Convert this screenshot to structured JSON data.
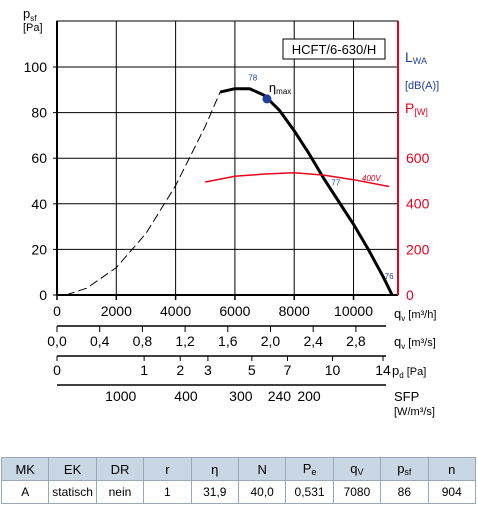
{
  "chart_data": {
    "type": "line",
    "model": "HCFT/6-630/H",
    "left_axis": {
      "label": "p",
      "label_sub": "sf",
      "unit": "[Pa]",
      "range": [
        0,
        100
      ],
      "ticks": [
        "0",
        "20",
        "40",
        "60",
        "80",
        "100"
      ]
    },
    "right_axis": {
      "label": "P",
      "label_sub": "[W]",
      "range": [
        0,
        875
      ],
      "ticks": [
        "0",
        "200",
        "400",
        "600"
      ],
      "sound_label": "L",
      "sound_sub": "WA",
      "sound_unit": "[dB(A)]"
    },
    "x_axis": {
      "label": "q",
      "label_sub": "v",
      "unit": "[m³/h]",
      "range": [
        0,
        11500
      ],
      "ticks": [
        "0",
        "2000",
        "4000",
        "6000",
        "8000",
        "10000"
      ]
    },
    "x_axis_m3s": {
      "label": "q",
      "label_sub": "v",
      "unit": "[m³/s]",
      "ticks": [
        "0,0",
        "0,4",
        "0,8",
        "1,2",
        "1,6",
        "2,0",
        "2,4",
        "2,8"
      ],
      "tick_values": [
        0,
        0.4,
        0.8,
        1.2,
        1.6,
        2.0,
        2.4,
        2.8
      ]
    },
    "x_axis_pd": {
      "label": "p",
      "label_sub": "d",
      "unit": "[Pa]",
      "ticks": [
        "0",
        "1",
        "2",
        "3",
        "5",
        "7",
        "10",
        "14"
      ],
      "tick_values": [
        0,
        1,
        2,
        3,
        5,
        7,
        10,
        14
      ]
    },
    "x_axis_sfp": {
      "label": "SFP",
      "unit": "[W/m³/s]",
      "ticks": [
        "1000",
        "400",
        "300",
        "240",
        "200"
      ],
      "tick_flow_m3h": [
        2150,
        4350,
        6200,
        7500,
        8500
      ]
    },
    "series": [
      {
        "name": "pressure-dashed",
        "axis": "left",
        "style": "dashed",
        "x": [
          300,
          1000,
          2000,
          3000,
          4000,
          5000,
          5500
        ],
        "y": [
          0,
          3,
          12,
          27,
          48,
          74,
          89
        ]
      },
      {
        "name": "pressure",
        "axis": "left",
        "style": "solid",
        "x": [
          5500,
          6000,
          6500,
          7000,
          7500,
          8000,
          8500,
          9000,
          9500,
          10000,
          10500,
          11000,
          11300
        ],
        "y": [
          89,
          90.5,
          90.5,
          87.5,
          81,
          72,
          62,
          51,
          41,
          31,
          20,
          8,
          0
        ]
      },
      {
        "name": "400V",
        "axis": "right",
        "style": "solid",
        "x": [
          5000,
          6000,
          7000,
          8000,
          9000,
          10000,
          11200
        ],
        "y": [
          495,
          520,
          530,
          535,
          525,
          505,
          475
        ]
      }
    ],
    "efficiency_labels": [
      {
        "text": "78",
        "x": 6600,
        "y": 94
      },
      {
        "text": "77",
        "x": 9400,
        "y": 48
      },
      {
        "text": "76",
        "x": 11200,
        "y": 7
      }
    ],
    "max_point": {
      "label": "η",
      "label_sub": "max",
      "x": 7080,
      "y": 86
    },
    "power_label": "400V",
    "grid": true
  },
  "table": {
    "headers": [
      {
        "main": "MK",
        "sub": ""
      },
      {
        "main": "EK",
        "sub": ""
      },
      {
        "main": "DR",
        "sub": ""
      },
      {
        "main": "r",
        "sub": ""
      },
      {
        "main": "η",
        "sub": ""
      },
      {
        "main": "N",
        "sub": ""
      },
      {
        "main": "P",
        "sub": "e"
      },
      {
        "main": "q",
        "sub": "V"
      },
      {
        "main": "p",
        "sub": "sf"
      },
      {
        "main": "n",
        "sub": ""
      }
    ],
    "row": [
      "A",
      "statisch",
      "nein",
      "1",
      "31,9",
      "40,0",
      "0,531",
      "7080",
      "86",
      "904"
    ]
  },
  "colors": {
    "red": "#e8001c",
    "blue": "#1f3f9c",
    "grid": "#000000",
    "table_header": "#c9d6e3"
  }
}
